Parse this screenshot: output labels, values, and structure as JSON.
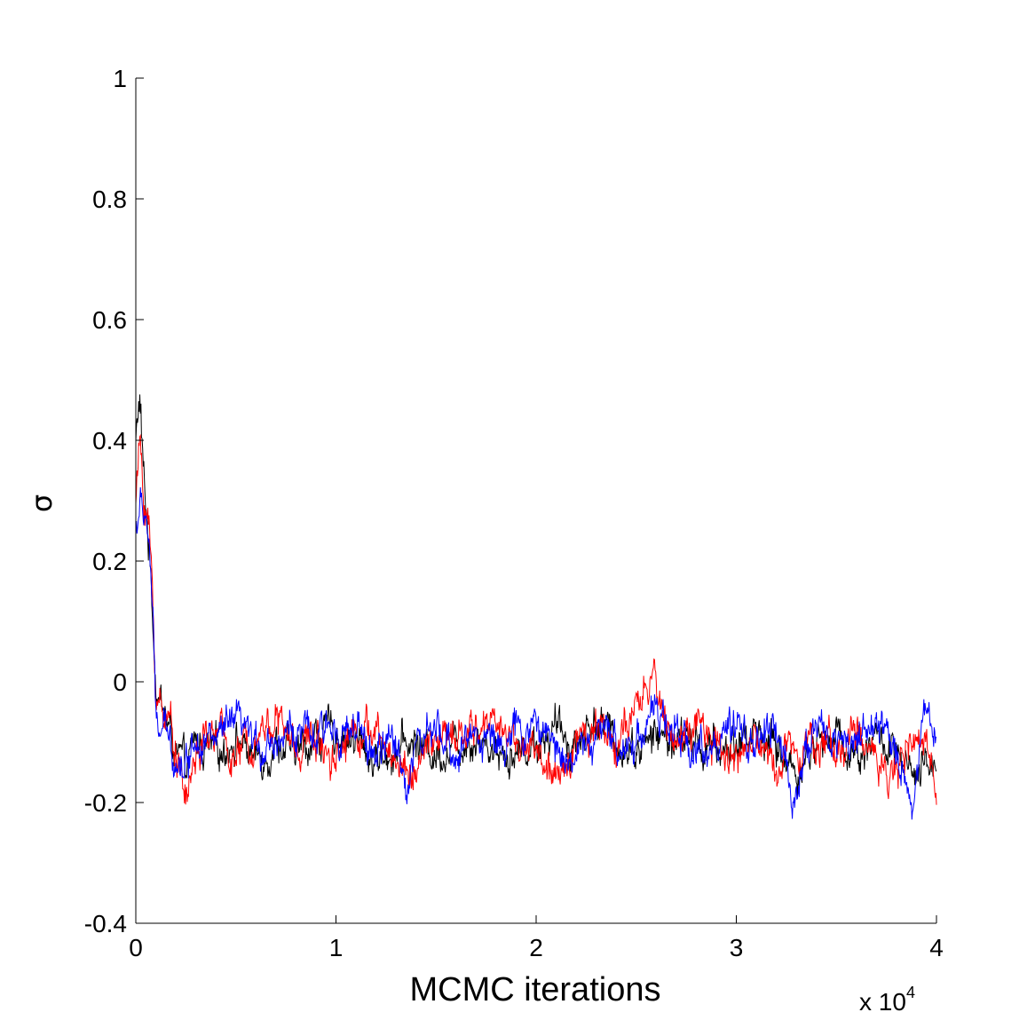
{
  "chart_data": {
    "type": "line",
    "title": "",
    "xlabel": "MCMC iterations",
    "ylabel": "σ",
    "x_multiplier_label": "x 10",
    "x_multiplier_exponent": "4",
    "xlim": [
      0,
      40000
    ],
    "ylim": [
      -0.4,
      1
    ],
    "x_ticks": [
      {
        "value": 0,
        "label": "0"
      },
      {
        "value": 10000,
        "label": "1"
      },
      {
        "value": 20000,
        "label": "2"
      },
      {
        "value": 30000,
        "label": "3"
      },
      {
        "value": 40000,
        "label": "4"
      }
    ],
    "y_ticks": [
      {
        "value": -0.4,
        "label": "-0.4"
      },
      {
        "value": -0.2,
        "label": "-0.2"
      },
      {
        "value": 0,
        "label": "0"
      },
      {
        "value": 0.2,
        "label": "0.2"
      },
      {
        "value": 0.4,
        "label": "0.4"
      },
      {
        "value": 0.6,
        "label": "0.6"
      },
      {
        "value": 0.8,
        "label": "0.8"
      },
      {
        "value": 1,
        "label": "1"
      }
    ],
    "grid": false,
    "legend": "none",
    "series": [
      {
        "color": "#000000",
        "x": [
          0,
          200,
          400,
          600,
          800,
          1000,
          1500,
          2000,
          2500,
          3000,
          4000,
          5000,
          6000,
          7000,
          8000,
          9000,
          10000,
          11000,
          12000,
          13000,
          14000,
          15000,
          16000,
          17000,
          18000,
          19000,
          20000,
          21000,
          22000,
          23000,
          24000,
          25000,
          26000,
          27000,
          28000,
          29000,
          30000,
          31000,
          32000,
          33000,
          34000,
          35000,
          36000,
          37000,
          38000,
          39000,
          40000
        ],
        "values": [
          0.4,
          0.47,
          0.33,
          0.25,
          0.15,
          0.0,
          -0.06,
          -0.12,
          -0.15,
          -0.1,
          -0.12,
          -0.09,
          -0.13,
          -0.1,
          -0.12,
          -0.09,
          -0.08,
          -0.1,
          -0.13,
          -0.11,
          -0.1,
          -0.12,
          -0.1,
          -0.09,
          -0.11,
          -0.12,
          -0.1,
          -0.08,
          -0.1,
          -0.06,
          -0.1,
          -0.11,
          -0.09,
          -0.1,
          -0.1,
          -0.12,
          -0.1,
          -0.08,
          -0.11,
          -0.15,
          -0.1,
          -0.09,
          -0.12,
          -0.09,
          -0.13,
          -0.17,
          -0.12
        ]
      },
      {
        "color": "#ff0000",
        "x": [
          0,
          200,
          400,
          600,
          800,
          1000,
          1500,
          2000,
          2500,
          3000,
          4000,
          5000,
          6000,
          7000,
          8000,
          9000,
          10000,
          11000,
          12000,
          13000,
          14000,
          15000,
          16000,
          17000,
          18000,
          19000,
          20000,
          21000,
          22000,
          23000,
          24000,
          25000,
          25800,
          26500,
          27000,
          28000,
          29000,
          30000,
          31000,
          32000,
          33000,
          34000,
          35000,
          36000,
          37000,
          38000,
          39000,
          40000
        ],
        "values": [
          0.3,
          0.4,
          0.3,
          0.28,
          0.17,
          -0.02,
          -0.05,
          -0.1,
          -0.2,
          -0.12,
          -0.08,
          -0.13,
          -0.08,
          -0.06,
          -0.11,
          -0.09,
          -0.12,
          -0.07,
          -0.09,
          -0.13,
          -0.15,
          -0.09,
          -0.1,
          -0.08,
          -0.06,
          -0.1,
          -0.11,
          -0.18,
          -0.09,
          -0.07,
          -0.1,
          -0.06,
          0.01,
          -0.06,
          -0.1,
          -0.08,
          -0.11,
          -0.12,
          -0.1,
          -0.14,
          -0.09,
          -0.1,
          -0.11,
          -0.09,
          -0.12,
          -0.15,
          -0.1,
          -0.14
        ]
      },
      {
        "color": "#0000ff",
        "x": [
          0,
          200,
          400,
          600,
          800,
          1000,
          1500,
          2000,
          2500,
          3000,
          4000,
          5000,
          6000,
          7000,
          8000,
          9000,
          10000,
          11000,
          12000,
          13000,
          13500,
          14000,
          15000,
          16000,
          17000,
          18000,
          19000,
          20000,
          21000,
          22000,
          23000,
          24000,
          25000,
          25800,
          26500,
          27000,
          28000,
          29000,
          30000,
          31000,
          32000,
          32800,
          34000,
          35000,
          36000,
          37000,
          38000,
          38800,
          39500,
          40000
        ],
        "values": [
          0.25,
          0.29,
          0.28,
          0.26,
          0.15,
          -0.07,
          -0.09,
          -0.12,
          -0.14,
          -0.08,
          -0.1,
          -0.07,
          -0.11,
          -0.09,
          -0.08,
          -0.1,
          -0.07,
          -0.09,
          -0.12,
          -0.1,
          -0.17,
          -0.1,
          -0.09,
          -0.12,
          -0.08,
          -0.1,
          -0.09,
          -0.07,
          -0.11,
          -0.12,
          -0.09,
          -0.1,
          -0.1,
          -0.04,
          -0.08,
          -0.09,
          -0.11,
          -0.1,
          -0.09,
          -0.1,
          -0.08,
          -0.19,
          -0.07,
          -0.1,
          -0.09,
          -0.08,
          -0.11,
          -0.2,
          -0.03,
          -0.1
        ]
      }
    ]
  }
}
